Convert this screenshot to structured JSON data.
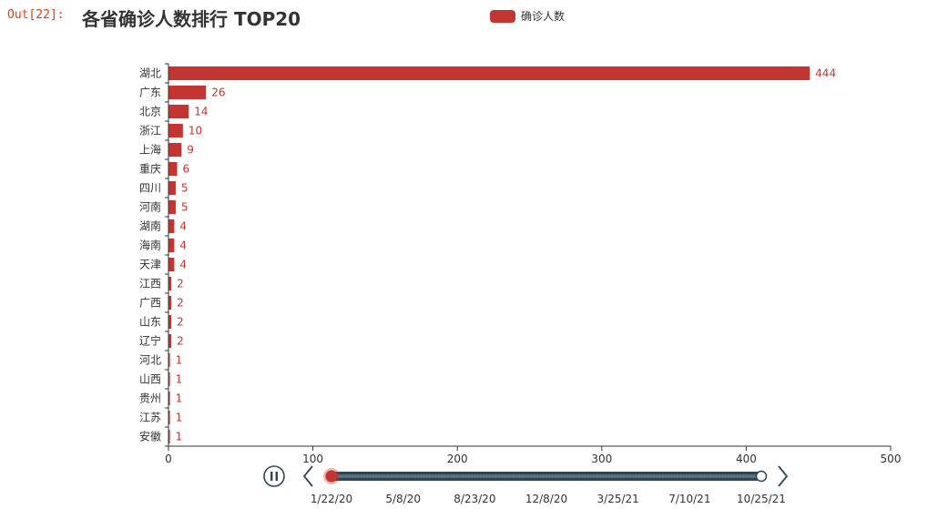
{
  "notebook": {
    "out_label": "Out[22]:"
  },
  "chart_data": {
    "type": "bar",
    "orientation": "horizontal",
    "title": "各省确诊人数排行 TOP20",
    "legend": {
      "label": "确诊人数",
      "position": "top-center"
    },
    "series": [
      {
        "name": "确诊人数",
        "color": "#c23531"
      }
    ],
    "categories": [
      "湖北",
      "广东",
      "北京",
      "浙江",
      "上海",
      "重庆",
      "四川",
      "河南",
      "湖南",
      "海南",
      "天津",
      "江西",
      "广西",
      "山东",
      "辽宁",
      "河北",
      "山西",
      "贵州",
      "江苏",
      "安徽"
    ],
    "values": [
      444,
      26,
      14,
      10,
      9,
      6,
      5,
      5,
      4,
      4,
      4,
      2,
      2,
      2,
      2,
      1,
      1,
      1,
      1,
      1
    ],
    "xlim": [
      0,
      500
    ],
    "xticks": [
      0,
      100,
      200,
      300,
      400,
      500
    ],
    "grid": false
  },
  "timeline": {
    "labels": [
      "1/22/20",
      "5/8/20",
      "8/23/20",
      "12/8/20",
      "3/25/21",
      "7/10/21",
      "10/25/21"
    ],
    "current_index": 0,
    "progress_color": "#c23531",
    "track_color": "#304654",
    "play_state": "playing"
  }
}
